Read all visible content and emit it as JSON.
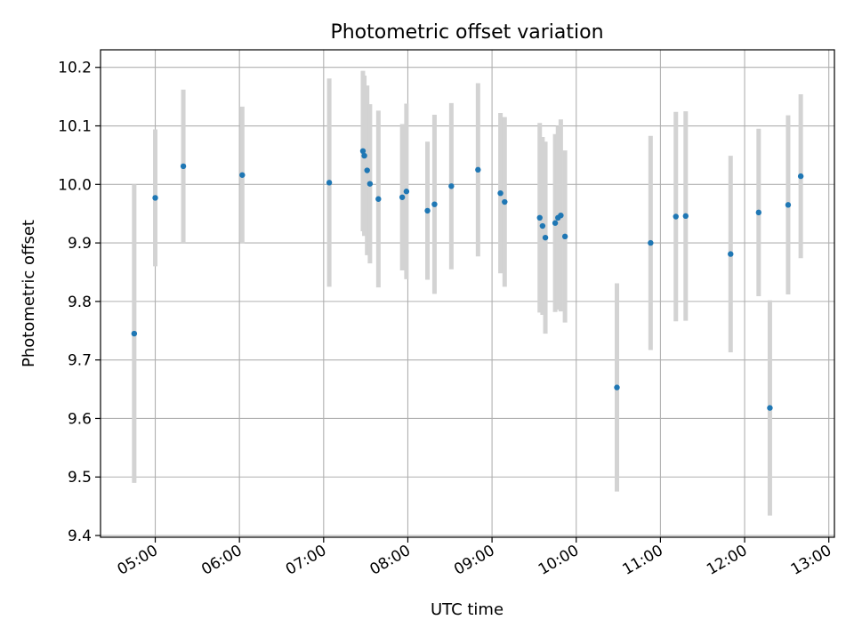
{
  "chart_data": {
    "type": "scatter",
    "title": "Photometric offset variation",
    "xlabel": "UTC time",
    "ylabel": "Photometric offset",
    "x_ticks": [
      "05:00",
      "06:00",
      "07:00",
      "08:00",
      "09:00",
      "10:00",
      "11:00",
      "12:00",
      "13:00"
    ],
    "y_ticks": [
      "9.4",
      "9.5",
      "9.6",
      "9.7",
      "9.8",
      "9.9",
      "10.0",
      "10.1",
      "10.2"
    ],
    "xlim": [
      "04:21",
      "13:04"
    ],
    "ylim": [
      9.397,
      10.23
    ],
    "grid": true,
    "colors": {
      "point": "#1f77b4",
      "errorbar": "#d3d3d3",
      "grid": "#b0b0b0",
      "axes": "#000000"
    },
    "points": [
      {
        "x": "04:45",
        "y": 9.745,
        "err": 0.255
      },
      {
        "x": "05:00",
        "y": 9.977,
        "err": 0.117
      },
      {
        "x": "05:20",
        "y": 10.031,
        "err": 0.131
      },
      {
        "x": "06:02",
        "y": 10.016,
        "err": 0.117
      },
      {
        "x": "07:04",
        "y": 10.003,
        "err": 0.178
      },
      {
        "x": "07:28",
        "y": 10.057,
        "err": 0.137
      },
      {
        "x": "07:29",
        "y": 10.049,
        "err": 0.137
      },
      {
        "x": "07:31",
        "y": 10.024,
        "err": 0.145
      },
      {
        "x": "07:33",
        "y": 10.001,
        "err": 0.136
      },
      {
        "x": "07:39",
        "y": 9.975,
        "err": 0.151
      },
      {
        "x": "07:56",
        "y": 9.978,
        "err": 0.125
      },
      {
        "x": "07:59",
        "y": 9.988,
        "err": 0.15
      },
      {
        "x": "08:14",
        "y": 9.955,
        "err": 0.118
      },
      {
        "x": "08:19",
        "y": 9.966,
        "err": 0.153
      },
      {
        "x": "08:31",
        "y": 9.997,
        "err": 0.142
      },
      {
        "x": "08:50",
        "y": 10.025,
        "err": 0.148
      },
      {
        "x": "09:06",
        "y": 9.985,
        "err": 0.137
      },
      {
        "x": "09:09",
        "y": 9.97,
        "err": 0.145
      },
      {
        "x": "09:34",
        "y": 9.943,
        "err": 0.162
      },
      {
        "x": "09:36",
        "y": 9.929,
        "err": 0.152
      },
      {
        "x": "09:38",
        "y": 9.909,
        "err": 0.164
      },
      {
        "x": "09:45",
        "y": 9.934,
        "err": 0.152
      },
      {
        "x": "09:47",
        "y": 9.943,
        "err": 0.157
      },
      {
        "x": "09:49",
        "y": 9.947,
        "err": 0.164
      },
      {
        "x": "09:52",
        "y": 9.911,
        "err": 0.147
      },
      {
        "x": "10:29",
        "y": 9.653,
        "err": 0.178
      },
      {
        "x": "10:53",
        "y": 9.9,
        "err": 0.183
      },
      {
        "x": "11:11",
        "y": 9.945,
        "err": 0.179
      },
      {
        "x": "11:18",
        "y": 9.946,
        "err": 0.179
      },
      {
        "x": "11:50",
        "y": 9.881,
        "err": 0.168
      },
      {
        "x": "12:10",
        "y": 9.952,
        "err": 0.143
      },
      {
        "x": "12:18",
        "y": 9.618,
        "err": 0.184
      },
      {
        "x": "12:31",
        "y": 9.965,
        "err": 0.153
      },
      {
        "x": "12:40",
        "y": 10.014,
        "err": 0.14
      }
    ]
  }
}
